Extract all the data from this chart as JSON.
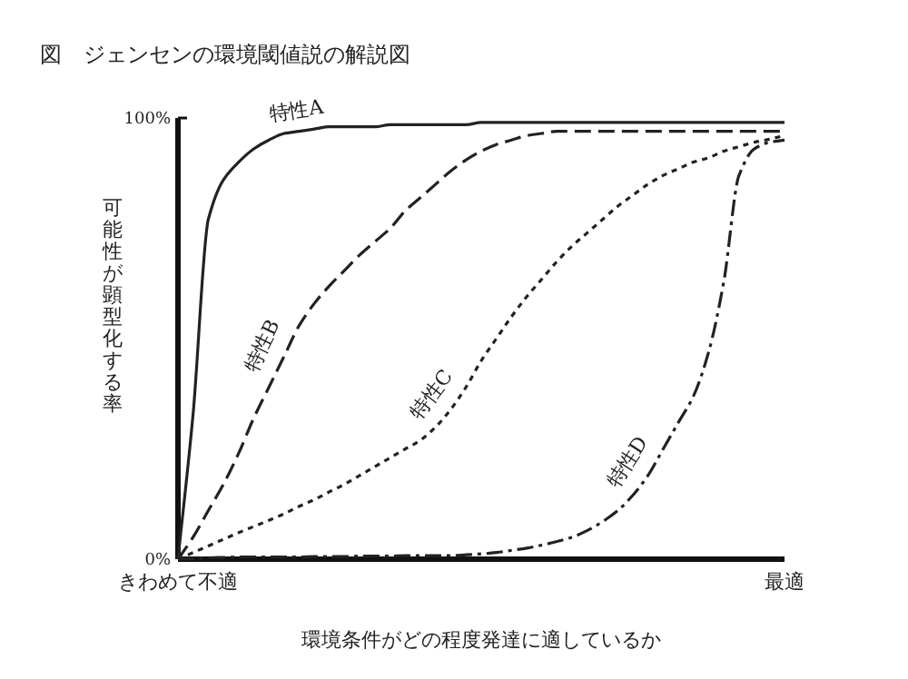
{
  "chart_data": {
    "type": "line",
    "title": "図　ジェンセンの環境閾値説の解説図",
    "xlabel": "環境条件がどの程度発達に適しているか",
    "ylabel": "可能性が顕型化する率",
    "categories": [
      "きわめて不適",
      null,
      null,
      null,
      null,
      null,
      null,
      null,
      null,
      null,
      null,
      null,
      null,
      null,
      null,
      null,
      null,
      null,
      null,
      null,
      null,
      null,
      null,
      null,
      null,
      null,
      null,
      null,
      null,
      null,
      null,
      null,
      null,
      null,
      null,
      null,
      null,
      null,
      null,
      null,
      "最適"
    ],
    "ylim": [
      0,
      100
    ],
    "yticks": [
      {
        "value": 0,
        "label": "0%"
      },
      {
        "value": 100,
        "label": "100%"
      }
    ],
    "series": [
      {
        "name": "特性A",
        "color": "#222222",
        "line_style": "solid",
        "values": [
          0,
          33,
          77,
          86,
          90,
          93,
          95,
          96.5,
          97,
          97.5,
          98,
          98,
          98,
          98,
          98.5,
          98.5,
          98.5,
          98.5,
          98.5,
          98.5,
          99,
          99,
          99,
          99,
          99,
          99,
          99,
          99,
          99,
          99,
          99,
          99,
          99,
          99,
          99,
          99,
          99,
          99,
          99,
          99,
          99
        ]
      },
      {
        "name": "特性B",
        "color": "#222222",
        "line_style": "dashed",
        "values": [
          0,
          5,
          11,
          17,
          24,
          32,
          39,
          46,
          53,
          58,
          62,
          65.5,
          69,
          72,
          75,
          79,
          82,
          85,
          88,
          90.5,
          92.5,
          94,
          95,
          96,
          96.5,
          97,
          97,
          97,
          97,
          97,
          97,
          97,
          97,
          97,
          97,
          97,
          97,
          97,
          97,
          97,
          97
        ]
      },
      {
        "name": "特性C",
        "color": "#222222",
        "line_style": "dotted",
        "values": [
          0,
          1.5,
          3,
          4.5,
          6,
          7.4,
          8.8,
          10.3,
          12,
          13.5,
          15.3,
          17,
          19,
          21,
          23,
          25,
          27,
          30,
          34,
          39,
          45,
          50,
          55,
          59.5,
          63.5,
          67.5,
          71,
          74,
          77,
          80,
          82.5,
          85,
          87,
          88.5,
          90,
          91,
          92.5,
          93.5,
          94.5,
          95.2,
          96
        ]
      },
      {
        "name": "特性D",
        "color": "#222222",
        "line_style": "dashdot",
        "values": [
          0,
          0.2,
          0.3,
          0.4,
          0.5,
          0.5,
          0.5,
          0.5,
          0.5,
          0.6,
          0.6,
          0.6,
          0.7,
          0.7,
          0.7,
          0.8,
          0.8,
          0.8,
          0.8,
          1,
          1.2,
          1.5,
          2,
          2.5,
          3.2,
          4,
          5,
          6.5,
          8.5,
          11,
          14.5,
          19,
          25,
          31,
          37,
          47,
          63,
          87,
          93,
          94.5,
          95
        ]
      }
    ]
  }
}
